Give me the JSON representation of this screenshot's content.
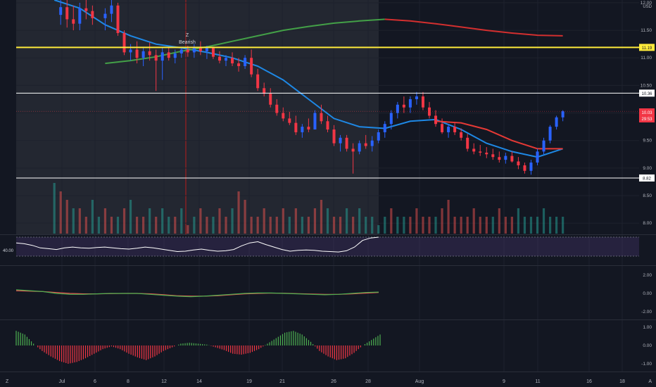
{
  "chart_data": {
    "type": "candlestick",
    "currency": "USD",
    "price_axis": {
      "ticks": [
        "12.00",
        "11.50",
        "11.00",
        "10.50",
        "10.00",
        "9.50",
        "9.00",
        "8.50",
        "8.00"
      ],
      "ylim": [
        7.9,
        12.05
      ]
    },
    "time_axis": {
      "labels": [
        "Jul",
        "6",
        "8",
        "12",
        "14",
        "19",
        "21",
        "26",
        "28",
        "Aug",
        "9",
        "11",
        "16",
        "18"
      ],
      "range_days": [
        -4,
        45
      ]
    },
    "horizontal_lines": [
      {
        "price": 11.19,
        "label": "11.19",
        "color": "#ffeb3b"
      },
      {
        "price": 10.36,
        "label": "10.36",
        "color": "#ffffff"
      },
      {
        "price": 8.82,
        "label": "8.82",
        "color": "#ffffff"
      }
    ],
    "last_price": {
      "value": "10.03",
      "countdown": "29:53",
      "color": "#f23645"
    },
    "annotation": {
      "letter": "Z",
      "text": "Bearish"
    },
    "candles": [
      [
        -0.5,
        11.78,
        12.05,
        11.6,
        11.92
      ],
      [
        0,
        11.92,
        12.05,
        11.55,
        11.7
      ],
      [
        0.5,
        11.7,
        11.95,
        11.5,
        11.62
      ],
      [
        1,
        11.62,
        12.0,
        11.5,
        11.9
      ],
      [
        1.5,
        11.9,
        12.05,
        11.7,
        11.85
      ],
      [
        2,
        11.85,
        11.95,
        11.6,
        11.72
      ],
      [
        3,
        11.72,
        11.9,
        11.5,
        11.8
      ],
      [
        3.5,
        11.8,
        12.05,
        11.65,
        11.95
      ],
      [
        4,
        11.95,
        12.0,
        11.4,
        11.45
      ],
      [
        4.5,
        11.45,
        11.5,
        11.05,
        11.1
      ],
      [
        5,
        11.1,
        11.25,
        10.95,
        11.15
      ],
      [
        5.5,
        11.15,
        11.3,
        10.9,
        11.0
      ],
      [
        6,
        11.0,
        11.2,
        10.85,
        11.12
      ],
      [
        6.5,
        11.12,
        11.28,
        10.95,
        11.05
      ],
      [
        7,
        11.05,
        11.15,
        10.4,
        10.95
      ],
      [
        7.5,
        10.95,
        11.2,
        10.6,
        11.1
      ],
      [
        8,
        11.1,
        11.2,
        10.95,
        11.0
      ],
      [
        8.5,
        11.0,
        11.15,
        10.9,
        11.08
      ],
      [
        9,
        11.08,
        11.2,
        11.0,
        11.15
      ],
      [
        9.5,
        11.15,
        11.22,
        11.02,
        11.1
      ],
      [
        10,
        11.1,
        11.25,
        11.0,
        11.2
      ],
      [
        10.5,
        11.2,
        11.3,
        11.05,
        11.12
      ],
      [
        11,
        11.12,
        11.22,
        10.98,
        11.18
      ],
      [
        11.5,
        11.18,
        11.2,
        10.98,
        11.02
      ],
      [
        12,
        11.02,
        11.12,
        10.9,
        10.95
      ],
      [
        12.5,
        10.95,
        11.05,
        10.85,
        11.0
      ],
      [
        13,
        11.0,
        11.1,
        10.85,
        10.9
      ],
      [
        13.5,
        10.9,
        11.0,
        10.75,
        10.85
      ],
      [
        14,
        10.85,
        11.05,
        10.8,
        11.0
      ],
      [
        14.5,
        11.0,
        11.15,
        10.65,
        10.7
      ],
      [
        15,
        10.7,
        10.8,
        10.4,
        10.45
      ],
      [
        15.5,
        10.45,
        10.55,
        10.3,
        10.35
      ],
      [
        16,
        10.35,
        10.45,
        10.1,
        10.15
      ],
      [
        16.5,
        10.15,
        10.25,
        9.95,
        10.0
      ],
      [
        17,
        10.0,
        10.1,
        9.85,
        9.9
      ],
      [
        17.5,
        9.9,
        10.02,
        9.78,
        9.82
      ],
      [
        18,
        9.82,
        9.95,
        9.6,
        9.65
      ],
      [
        18.5,
        9.65,
        9.8,
        9.55,
        9.75
      ],
      [
        19,
        9.75,
        9.9,
        9.65,
        9.7
      ],
      [
        19.5,
        9.7,
        10.05,
        9.7,
        10.0
      ],
      [
        20,
        10.0,
        10.15,
        9.8,
        9.85
      ],
      [
        20.5,
        9.85,
        9.95,
        9.65,
        9.7
      ],
      [
        21,
        9.7,
        9.78,
        9.4,
        9.45
      ],
      [
        21.5,
        9.45,
        9.6,
        9.3,
        9.55
      ],
      [
        22,
        9.55,
        9.6,
        9.3,
        9.35
      ],
      [
        22.5,
        9.35,
        9.45,
        8.9,
        9.3
      ],
      [
        23,
        9.3,
        9.5,
        9.25,
        9.45
      ],
      [
        23.5,
        9.45,
        9.6,
        9.35,
        9.4
      ],
      [
        24,
        9.4,
        9.58,
        9.3,
        9.5
      ],
      [
        24.5,
        9.5,
        9.7,
        9.45,
        9.65
      ],
      [
        25,
        9.65,
        9.85,
        9.55,
        9.8
      ],
      [
        25.5,
        9.8,
        10.05,
        9.7,
        10.0
      ],
      [
        26,
        10.0,
        10.2,
        9.9,
        10.15
      ],
      [
        26.5,
        10.15,
        10.3,
        10.0,
        10.1
      ],
      [
        27,
        10.1,
        10.3,
        10.0,
        10.25
      ],
      [
        27.5,
        10.25,
        10.38,
        10.15,
        10.3
      ],
      [
        28,
        10.3,
        10.38,
        10.05,
        10.1
      ],
      [
        28.5,
        10.1,
        10.2,
        9.9,
        9.95
      ],
      [
        29,
        9.95,
        10.05,
        9.75,
        9.8
      ],
      [
        29.5,
        9.8,
        9.9,
        9.62,
        9.65
      ],
      [
        30,
        9.65,
        9.8,
        9.55,
        9.75
      ],
      [
        30.5,
        9.75,
        9.82,
        9.6,
        9.65
      ],
      [
        31,
        9.65,
        9.72,
        9.5,
        9.55
      ],
      [
        31.5,
        9.55,
        9.62,
        9.3,
        9.35
      ],
      [
        32,
        9.35,
        9.45,
        9.25,
        9.3
      ],
      [
        32.5,
        9.3,
        9.42,
        9.22,
        9.28
      ],
      [
        33,
        9.28,
        9.38,
        9.18,
        9.25
      ],
      [
        33.5,
        9.25,
        9.35,
        9.15,
        9.2
      ],
      [
        34,
        9.2,
        9.3,
        9.1,
        9.15
      ],
      [
        34.5,
        9.15,
        9.28,
        9.08,
        9.22
      ],
      [
        35,
        9.22,
        9.3,
        9.1,
        9.12
      ],
      [
        35.5,
        9.12,
        9.2,
        8.98,
        9.05
      ],
      [
        36,
        9.05,
        9.1,
        8.9,
        8.95
      ],
      [
        36.5,
        8.95,
        9.15,
        8.88,
        9.1
      ],
      [
        37,
        9.1,
        9.35,
        9.05,
        9.3
      ],
      [
        37.5,
        9.3,
        9.55,
        9.25,
        9.5
      ],
      [
        38,
        9.5,
        9.78,
        9.45,
        9.75
      ],
      [
        38.5,
        9.75,
        9.95,
        9.7,
        9.92
      ],
      [
        39,
        9.92,
        10.05,
        9.85,
        10.03
      ]
    ],
    "moving_averages": [
      {
        "color": "#1e88e5",
        "points": [
          [
            -1,
            12.05
          ],
          [
            1,
            11.9
          ],
          [
            3,
            11.6
          ],
          [
            5,
            11.4
          ],
          [
            7,
            11.25
          ],
          [
            9,
            11.18
          ],
          [
            11,
            11.1
          ],
          [
            13,
            11.0
          ],
          [
            15,
            10.85
          ],
          [
            17,
            10.6
          ],
          [
            19,
            10.25
          ],
          [
            21,
            9.9
          ],
          [
            23,
            9.75
          ],
          [
            25,
            9.72
          ],
          [
            27,
            9.85
          ],
          [
            29,
            9.88
          ],
          [
            31,
            9.7
          ],
          [
            33,
            9.45
          ],
          [
            35,
            9.3
          ],
          [
            37,
            9.2
          ],
          [
            39,
            9.35
          ]
        ]
      },
      {
        "color": "#e53935",
        "points": [
          [
            29,
            9.85
          ],
          [
            31,
            9.82
          ],
          [
            33,
            9.7
          ],
          [
            35,
            9.5
          ],
          [
            37,
            9.35
          ],
          [
            39,
            9.35
          ]
        ]
      },
      {
        "color": "#43a047",
        "points": [
          [
            3,
            10.9
          ],
          [
            5,
            10.95
          ],
          [
            7,
            11.02
          ],
          [
            9,
            11.12
          ],
          [
            11,
            11.2
          ],
          [
            13,
            11.3
          ],
          [
            15,
            11.4
          ],
          [
            17,
            11.5
          ],
          [
            19,
            11.57
          ],
          [
            21,
            11.63
          ],
          [
            23,
            11.67
          ],
          [
            25,
            11.7
          ]
        ]
      },
      {
        "color": "#d32f2f",
        "points": [
          [
            25,
            11.7
          ],
          [
            27,
            11.67
          ],
          [
            29,
            11.62
          ],
          [
            31,
            11.56
          ],
          [
            33,
            11.5
          ],
          [
            35,
            11.45
          ],
          [
            37,
            11.41
          ],
          [
            39,
            11.4
          ]
        ]
      }
    ],
    "volume": [
      6,
      5,
      4,
      3,
      3,
      2,
      4,
      2,
      3,
      2,
      2,
      3,
      4,
      2,
      2,
      3,
      2,
      3,
      2,
      2,
      3,
      1,
      2,
      3,
      2,
      2,
      3,
      2,
      3,
      5,
      4,
      2,
      2,
      3,
      2,
      2,
      3,
      2,
      3,
      2,
      2,
      3,
      4,
      3,
      2,
      2,
      3,
      2,
      3,
      2,
      2,
      1,
      2,
      3,
      2,
      2,
      2,
      3,
      2,
      2,
      2,
      3,
      4,
      2,
      2,
      2,
      3,
      2,
      2,
      2,
      3,
      2,
      2,
      3,
      2,
      2,
      2,
      3,
      2,
      2,
      2
    ],
    "rsi": {
      "label": "40.00",
      "values": [
        62,
        60,
        56,
        50,
        48,
        46,
        50,
        52,
        50,
        49,
        51,
        52,
        50,
        48,
        47,
        49,
        52,
        50,
        47,
        44,
        41,
        42,
        45,
        47,
        44,
        42,
        43,
        46,
        55,
        62,
        65,
        58,
        52,
        46,
        42,
        44,
        45,
        44,
        42,
        41,
        40,
        43,
        52,
        68,
        74,
        76
      ]
    },
    "macd": {
      "ticks": [
        "2.00",
        "0.00",
        "-2.00"
      ],
      "macd_line": [
        0.4,
        0.3,
        0.2,
        0.0,
        -0.1,
        -0.1,
        -0.05,
        0.0,
        0.0,
        0.0,
        -0.1,
        -0.2,
        -0.3,
        -0.35,
        -0.3,
        -0.2,
        -0.1,
        0.0,
        0.05,
        0.05,
        0.0,
        -0.05,
        -0.1,
        -0.15,
        -0.1,
        0.0,
        0.1,
        0.15
      ],
      "signal_line": [
        0.3,
        0.25,
        0.2,
        0.1,
        0.0,
        -0.05,
        -0.05,
        -0.02,
        0.0,
        0.0,
        -0.05,
        -0.15,
        -0.25,
        -0.3,
        -0.3,
        -0.25,
        -0.15,
        -0.05,
        0.0,
        0.03,
        0.02,
        -0.02,
        -0.07,
        -0.1,
        -0.1,
        -0.05,
        0.03,
        0.1
      ]
    },
    "oscillator": {
      "ticks": [
        "1.00",
        "0.00",
        "-1.00"
      ],
      "values": [
        0.8,
        0.6,
        0.1,
        -0.3,
        -0.6,
        -0.85,
        -1.0,
        -0.9,
        -0.7,
        -0.45,
        -0.2,
        -0.05,
        -0.2,
        -0.45,
        -0.65,
        -0.8,
        -0.6,
        -0.3,
        -0.1,
        0.1,
        0.15,
        0.1,
        0.05,
        -0.1,
        -0.25,
        -0.45,
        -0.5,
        -0.4,
        -0.2,
        0.1,
        0.4,
        0.7,
        0.8,
        0.6,
        0.2,
        -0.3,
        -0.6,
        -0.8,
        -0.7,
        -0.4,
        0.0,
        0.3,
        0.6
      ]
    }
  }
}
